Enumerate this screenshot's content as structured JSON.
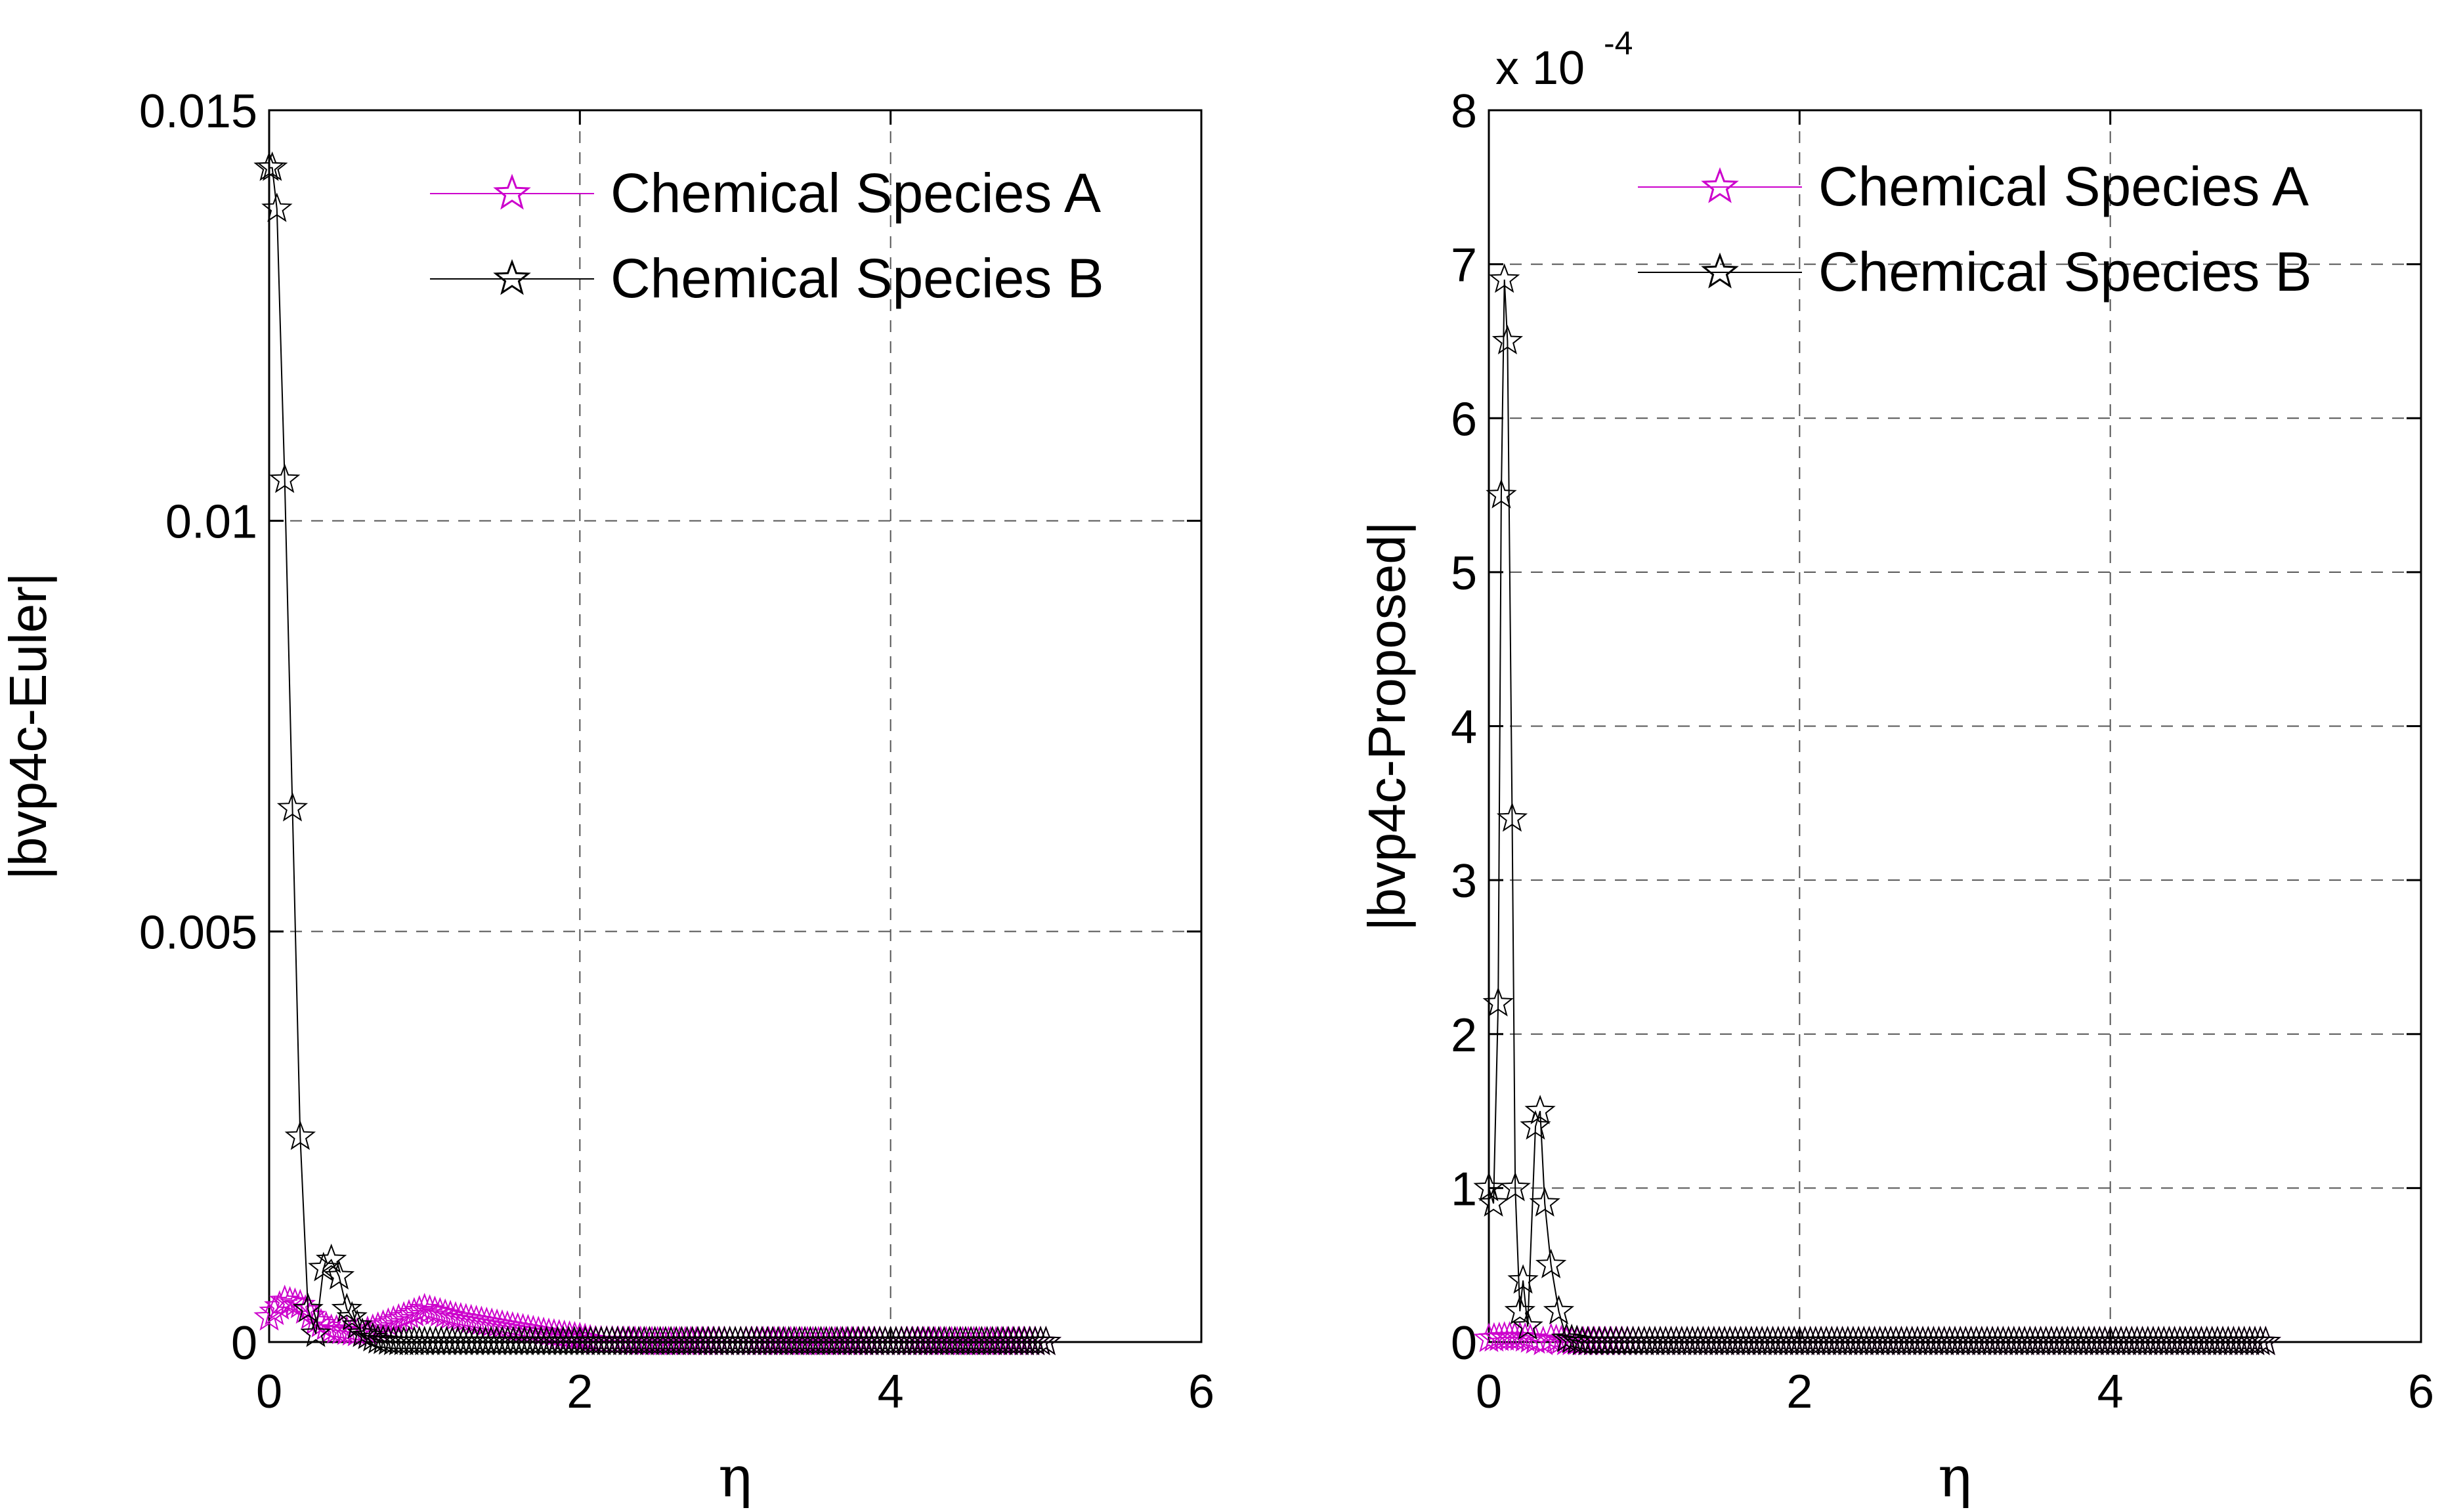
{
  "chart_data": [
    {
      "type": "line",
      "id": "left",
      "title": "",
      "xlabel": "η",
      "ylabel": "|bvp4c-Euler|",
      "xlim": [
        0,
        6
      ],
      "ylim": [
        0,
        0.015
      ],
      "xticks": [
        0,
        2,
        4,
        6
      ],
      "xtick_labels": [
        "0",
        "2",
        "4",
        "6"
      ],
      "yticks": [
        0,
        0.005,
        0.01,
        0.015
      ],
      "ytick_labels": [
        "0",
        "0.005",
        "0.01",
        "0.015"
      ],
      "exponent_label": "",
      "exponent_power": "",
      "grid": true,
      "legend_position": "top-right",
      "series": [
        {
          "name": "Chemical Species A",
          "color": "#cc00cc",
          "x": [
            0,
            0.1,
            0.2,
            0.3,
            0.4,
            0.6,
            0.8,
            1.0,
            1.2,
            1.5,
            1.8,
            2.0,
            2.1,
            2.5,
            3,
            3.5,
            4,
            4.5,
            5
          ],
          "y": [
            0.0003,
            0.0005,
            0.00045,
            0.00025,
            0.00015,
            0.0001,
            0.00025,
            0.0004,
            0.0003,
            0.0002,
            0.0001,
            5e-05,
            1e-05,
            0,
            0,
            0,
            0,
            0,
            0
          ]
        },
        {
          "name": "Chemical Species B",
          "color": "#000000",
          "x": [
            0,
            0.02,
            0.05,
            0.1,
            0.15,
            0.2,
            0.25,
            0.3,
            0.35,
            0.4,
            0.45,
            0.5,
            0.6,
            0.7,
            0.8,
            1.0,
            1.5,
            2,
            3,
            4,
            5
          ],
          "y": [
            0.0143,
            0.0143,
            0.0138,
            0.0105,
            0.0065,
            0.0025,
            0.0004,
            0.0001,
            0.0009,
            0.001,
            0.0008,
            0.0004,
            0.0001,
            2e-05,
            0,
            0,
            0,
            0,
            0,
            0,
            0
          ]
        }
      ]
    },
    {
      "type": "line",
      "id": "right",
      "title": "",
      "xlabel": "η",
      "ylabel": "|bvp4c-Proposed|",
      "xlim": [
        0,
        6
      ],
      "ylim": [
        0,
        8
      ],
      "xticks": [
        0,
        2,
        4,
        6
      ],
      "xtick_labels": [
        "0",
        "2",
        "4",
        "6"
      ],
      "yticks": [
        0,
        1,
        2,
        3,
        4,
        5,
        6,
        7,
        8
      ],
      "ytick_labels": [
        "0",
        "1",
        "2",
        "3",
        "4",
        "5",
        "6",
        "7",
        "8"
      ],
      "exponent_label": "x 10",
      "exponent_power": "-4",
      "grid": true,
      "legend_position": "top-right",
      "series": [
        {
          "name": "Chemical Species A",
          "color": "#cc00cc",
          "x": [
            0,
            0.1,
            0.2,
            0.3,
            0.35,
            0.4,
            0.5,
            1,
            2,
            3,
            4,
            5
          ],
          "y": [
            0.02,
            0.03,
            0.03,
            0.01,
            0.0,
            0.02,
            0.0,
            0,
            0,
            0,
            0,
            0
          ]
        },
        {
          "name": "Chemical Species B",
          "color": "#000000",
          "x": [
            0,
            0.03,
            0.06,
            0.08,
            0.1,
            0.12,
            0.15,
            0.17,
            0.2,
            0.22,
            0.25,
            0.3,
            0.33,
            0.36,
            0.4,
            0.45,
            0.5,
            0.6,
            1,
            2,
            3,
            4,
            5
          ],
          "y": [
            1.0,
            0.9,
            2.2,
            5.5,
            6.9,
            6.5,
            3.4,
            1.0,
            0.2,
            0.4,
            0.1,
            1.4,
            1.5,
            0.9,
            0.5,
            0.2,
            0.02,
            0,
            0,
            0,
            0,
            0,
            0
          ]
        }
      ]
    }
  ]
}
